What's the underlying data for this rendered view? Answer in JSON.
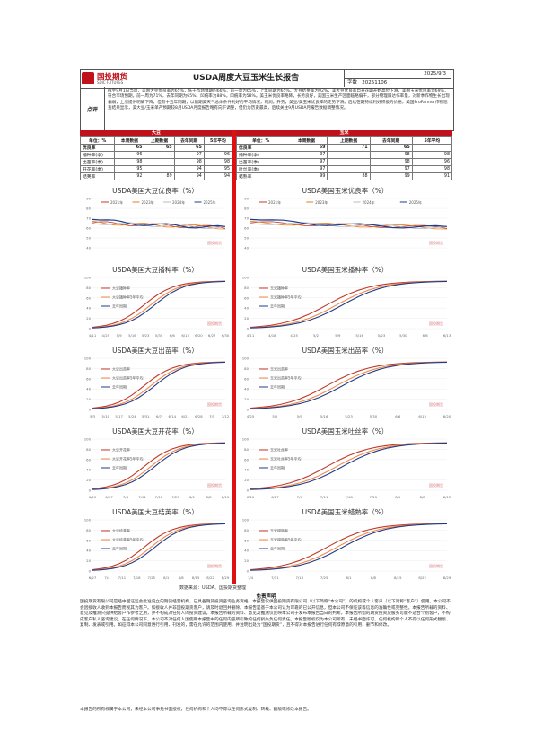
{
  "header": {
    "logo_cn": "国投期货",
    "logo_en": "SDIC FUTURES",
    "title": "USDA周度大豆玉米生长报告",
    "date": "2025/9/3",
    "report_no_label": "字数",
    "report_no": "20251106"
  },
  "summary": {
    "label": "点评",
    "text": "截至9月1日当周，美国大豆优良率为65%，低于市场预期的66%，前一周为65%，上年同期为65%。大豆结荚率为92%，美大豆优良率自开花期开始高位下滑，美国玉米优良率为69%，符合市场预期，前一周为71%，去年同期为65%。凹痕率为88%，凹痕率为58%。美玉米优良率略降，长势良好，美国玉米生产区面临略偏干，部分物理旧达作率量，对新季作物生长出现偏弱，上涨提供明确下降，但有十五年同期，以前期美天气总体条件利好的平均情况，利润，升势，美豆/美玉米优良率的走势下滑。后续在期持续利好积极的价格，美国ProFarmer作物巡查结果显示，美大豆/玉米单产预期较8月USDA月度报告略有向下调整，但仍为历史最高，后续关注9月USDA月报告数据调整情况。"
  },
  "soy": {
    "section": "大豆",
    "headers": [
      "单位：%",
      "本周数据",
      "上期数据",
      "去年同期",
      "5年平均"
    ],
    "rows": [
      [
        "优良率",
        "65",
        "65",
        "65",
        ""
      ],
      [
        "播种率(季)",
        "96",
        "",
        "97",
        "96"
      ],
      [
        "出苗率(季)",
        "98",
        "",
        "98",
        "98"
      ],
      [
        "开花率(季)",
        "95",
        "",
        "94",
        "95"
      ],
      [
        "结荚率",
        "92",
        "89",
        "94",
        "94"
      ]
    ]
  },
  "corn": {
    "section": "玉米",
    "headers": [
      "单位：%",
      "本周数据",
      "上期数据",
      "去年同期",
      "5年平均"
    ],
    "rows": [
      [
        "优良率",
        "69",
        "71",
        "65",
        ""
      ],
      [
        "播种率(季)",
        "97",
        "",
        "98",
        "98"
      ],
      [
        "出苗率(季)",
        "97",
        "",
        "98",
        "96"
      ],
      [
        "吐丝率(季)",
        "97",
        "",
        "97",
        "98"
      ],
      [
        "蜡熟率",
        "99",
        "88",
        "99",
        "91"
      ]
    ]
  },
  "charts": {
    "soy_good": {
      "title": "USDA美国大豆优良率（%）",
      "legend": [
        "2021年",
        "2023年",
        "2024年",
        "2025年"
      ]
    },
    "corn_good": {
      "title": "USDA美国玉米优良率（%）",
      "legend": [
        "2021年",
        "2023年",
        "2024年",
        "2025年"
      ]
    },
    "soy_plant": {
      "title": "USDA美国大豆播种率（%）",
      "legend": [
        "大豆播种率",
        "大豆播种率5年平均",
        "去年同期"
      ],
      "x": [
        "4/11",
        "4/25",
        "5/9",
        "5/16",
        "5/23",
        "5/30",
        "6/6",
        "6/13",
        "6/20",
        "6/27",
        "6/30"
      ]
    },
    "corn_plant": {
      "title": "USDA美国玉米播种率（%）",
      "legend": [
        "玉米播种率",
        "玉米播种率5年平均",
        "去年同期"
      ],
      "x": [
        "4/11",
        "4/18",
        "4/25",
        "5/2",
        "5/9",
        "5/16",
        "5/23",
        "5/30",
        "6/6",
        "6/13"
      ]
    },
    "soy_emerge": {
      "title": "USDA美国大豆出苗率（%）",
      "legend": [
        "大豆出苗率",
        "大豆出苗率5年平均",
        "去年同期"
      ],
      "x": [
        "5/3",
        "5/10",
        "5/17",
        "5/24",
        "5/31",
        "6/7",
        "6/14",
        "6/21",
        "6/28",
        "7/5",
        "7/12"
      ]
    },
    "corn_emerge": {
      "title": "USDA美国玉米出苗率（%）",
      "legend": [
        "玉米出苗率",
        "玉米出苗率5年平均",
        "去年同期"
      ],
      "x": [
        "4/25",
        "5/2",
        "5/9",
        "5/16",
        "5/23",
        "5/30",
        "6/6",
        "6/13",
        "6/20"
      ]
    },
    "soy_bloom": {
      "title": "USDA美国大豆开花率（%）",
      "legend": [
        "大豆开花率",
        "大豆开花率5年平均",
        "去年同期"
      ],
      "x": [
        "6/20",
        "6/27",
        "7/4",
        "7/11",
        "7/18",
        "7/25",
        "8/1",
        "8/8",
        "8/15"
      ]
    },
    "corn_silk": {
      "title": "USDA美国玉米吐丝率（%）",
      "legend": [
        "玉米吐丝率",
        "玉米吐丝率5年平均",
        "去年同期"
      ],
      "x": [
        "6/20",
        "6/27",
        "7/4",
        "7/11",
        "7/18",
        "7/25",
        "8/1",
        "8/8",
        "8/15"
      ]
    },
    "soy_pod": {
      "title": "USDA美国大豆结荚率（%）",
      "legend": [
        "大豆结荚率",
        "大豆结荚率5年平均",
        "去年同期"
      ],
      "x": [
        "6/27",
        "7/4",
        "7/11",
        "7/18",
        "7/25",
        "8/1",
        "8/8",
        "8/15",
        "8/22",
        "8/29"
      ]
    },
    "corn_dough": {
      "title": "USDA美国玉米蜡熟率（%）",
      "legend": [
        "玉米蜡熟率",
        "玉米蜡熟率5年平均",
        "去年同期"
      ],
      "x": [
        "7/4",
        "7/11",
        "7/18",
        "7/25",
        "8/1",
        "8/8",
        "8/15",
        "8/22",
        "8/29"
      ]
    }
  },
  "watermark": "国投期货",
  "source": "数据来源：USDA、国投期货整理",
  "disclaimer": {
    "title": "免责声明",
    "text": "国投期货有限公司是经中国证监会批准设立的期货经营机构，已具备期货投资咨询业务资格。本报告仅供国投期货有限公司（以下简称“本公司”）的机构或个人客户（以下简称“客户”）使用。本公司不会因接收人收到本报告而视其为客户。如接收人并非国投期货客户，请及时退回并删除。本报告是基于本公司认为可靠的已公开信息，但本公司不保证该等信息的准确性或完整性。本报告所载的资料、意见及推测只提供给客户作参考之用，并不构成对任何人的投资建议。本报告所载的资料、意见及推测仅反映本公司于发布本报告当日的判断。本报告所指的期货投资及服务可能不适合个别客户，不构成客户私人咨询建议。在任何情况下，本公司不对任何人因使用本报告中的任何内容所引致的任何损失负任何责任。本报告版权仅为本公司所有，未经书面许可，任何机构和个人不得以任何形式翻版、复制、发表或引用。如征得本公司同意进行引用、刊发的，需在允许的范围内使用，并注明出处为“国投期货”，且不得对本报告进行任何有悖原意的引用、删节和修改。",
    "note": "本报告的所有权属于本公司，未经本公司事先书面授权，任何机构和个人均不得以任何形式复制、转载、翻版或修改本报告。"
  }
}
